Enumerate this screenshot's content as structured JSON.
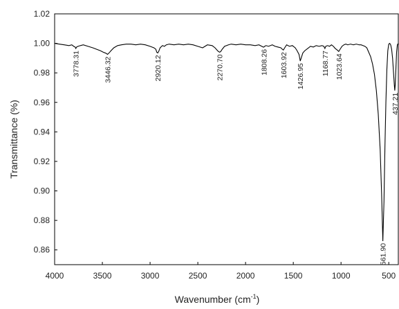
{
  "chart_data": {
    "type": "line",
    "title": "",
    "xlabel_main": "Wavenumber (cm",
    "xlabel_sup": "-1",
    "xlabel_close": ")",
    "ylabel": "Transmittance (%)",
    "xlim": [
      4000,
      400
    ],
    "ylim": [
      0.85,
      1.02
    ],
    "x_reversed": true,
    "grid": false,
    "legend": "none",
    "line_color": "#000000",
    "x_ticks": [
      {
        "value": 4000,
        "label": "4000"
      },
      {
        "value": 3500,
        "label": "3500"
      },
      {
        "value": 3000,
        "label": "3000"
      },
      {
        "value": 2500,
        "label": "2500"
      },
      {
        "value": 2000,
        "label": "2000"
      },
      {
        "value": 1500,
        "label": "1500"
      },
      {
        "value": 1000,
        "label": "1000"
      },
      {
        "value": 500,
        "label": "500"
      }
    ],
    "y_ticks": [
      {
        "value": 1.02,
        "label": "1.02"
      },
      {
        "value": 1.0,
        "label": "1.00"
      },
      {
        "value": 0.98,
        "label": "0.98"
      },
      {
        "value": 0.96,
        "label": "0.96"
      },
      {
        "value": 0.94,
        "label": "0.94"
      },
      {
        "value": 0.92,
        "label": "0.92"
      },
      {
        "value": 0.9,
        "label": "0.90"
      },
      {
        "value": 0.88,
        "label": "0.88"
      },
      {
        "value": 0.86,
        "label": "0.86"
      }
    ],
    "peak_labels": [
      {
        "x": 3778.31,
        "label": "3778.31",
        "y": 0.9965
      },
      {
        "x": 3446.32,
        "label": "3446.32",
        "y": 0.9925
      },
      {
        "x": 2920.12,
        "label": "2920.12",
        "y": 0.9935
      },
      {
        "x": 2270.7,
        "label": "2270.70",
        "y": 0.994
      },
      {
        "x": 1808.26,
        "label": "1808.26",
        "y": 0.9975
      },
      {
        "x": 1603.92,
        "label": "1603.92",
        "y": 0.9955
      },
      {
        "x": 1426.95,
        "label": "1426.95",
        "y": 0.988
      },
      {
        "x": 1168.77,
        "label": "1168.77",
        "y": 0.9965
      },
      {
        "x": 1023.64,
        "label": "1023.64",
        "y": 0.9945
      },
      {
        "x": 561.9,
        "label": "561.90",
        "y": 0.866
      },
      {
        "x": 437.21,
        "label": "437.21",
        "y": 0.968
      }
    ],
    "series": [
      {
        "x": [
          4000,
          3950,
          3900,
          3850,
          3820,
          3800,
          3785,
          3778,
          3770,
          3755,
          3730,
          3700,
          3650,
          3600,
          3560,
          3520,
          3490,
          3470,
          3455,
          3446,
          3430,
          3410,
          3380,
          3340,
          3300,
          3250,
          3200,
          3150,
          3100,
          3050,
          3000,
          2960,
          2940,
          2930,
          2920,
          2910,
          2895,
          2870,
          2850,
          2830,
          2800,
          2750,
          2700,
          2650,
          2600,
          2550,
          2500,
          2450,
          2400,
          2350,
          2320,
          2300,
          2285,
          2271,
          2260,
          2245,
          2220,
          2180,
          2150,
          2100,
          2050,
          2000,
          1950,
          1900,
          1860,
          1830,
          1815,
          1808,
          1800,
          1785,
          1760,
          1720,
          1690,
          1660,
          1630,
          1615,
          1604,
          1590,
          1570,
          1540,
          1510,
          1480,
          1460,
          1440,
          1427,
          1415,
          1400,
          1380,
          1350,
          1320,
          1290,
          1260,
          1230,
          1200,
          1180,
          1169,
          1160,
          1140,
          1120,
          1100,
          1080,
          1060,
          1040,
          1024,
          1010,
          990,
          970,
          950,
          930,
          900,
          870,
          840,
          810,
          790,
          770,
          750,
          730,
          710,
          690,
          670,
          650,
          630,
          610,
          590,
          575,
          562,
          550,
          540,
          530,
          520,
          510,
          500,
          490,
          480,
          470,
          460,
          450,
          442,
          437,
          432,
          425,
          418,
          410,
          400
        ],
        "y": [
          1.0,
          0.9995,
          0.999,
          0.9985,
          0.999,
          0.998,
          0.9975,
          0.9965,
          0.9975,
          0.998,
          0.9985,
          0.999,
          0.998,
          0.997,
          0.996,
          0.995,
          0.994,
          0.9935,
          0.993,
          0.9925,
          0.9935,
          0.995,
          0.997,
          0.9985,
          0.999,
          0.9995,
          0.9995,
          0.999,
          0.9995,
          0.999,
          0.998,
          0.997,
          0.996,
          0.994,
          0.9935,
          0.9945,
          0.997,
          0.9985,
          0.998,
          0.999,
          0.9995,
          0.999,
          0.9995,
          0.999,
          0.9995,
          0.999,
          0.998,
          0.997,
          0.999,
          0.9985,
          0.997,
          0.9955,
          0.9945,
          0.994,
          0.9945,
          0.996,
          0.998,
          0.999,
          0.9995,
          0.999,
          0.9995,
          0.999,
          0.999,
          0.9985,
          0.999,
          0.998,
          0.9975,
          0.9975,
          0.998,
          0.9985,
          0.998,
          0.999,
          0.998,
          0.9975,
          0.997,
          0.996,
          0.9955,
          0.997,
          0.999,
          0.998,
          0.9985,
          0.997,
          0.995,
          0.9925,
          0.988,
          0.9905,
          0.9935,
          0.995,
          0.9965,
          0.998,
          0.9975,
          0.9985,
          0.998,
          0.9985,
          0.998,
          0.9965,
          0.998,
          0.9985,
          0.998,
          0.999,
          0.998,
          0.9965,
          0.9955,
          0.9945,
          0.996,
          0.998,
          0.999,
          0.9995,
          0.999,
          0.9995,
          0.999,
          0.9995,
          0.999,
          0.999,
          0.9985,
          0.998,
          0.997,
          0.994,
          0.991,
          0.986,
          0.979,
          0.968,
          0.952,
          0.928,
          0.898,
          0.866,
          0.893,
          0.93,
          0.96,
          0.982,
          0.995,
          0.9995,
          1.0,
          0.999,
          0.996,
          0.99,
          0.98,
          0.972,
          0.968,
          0.972,
          0.983,
          0.994,
          0.999,
          1.0
        ]
      }
    ]
  }
}
